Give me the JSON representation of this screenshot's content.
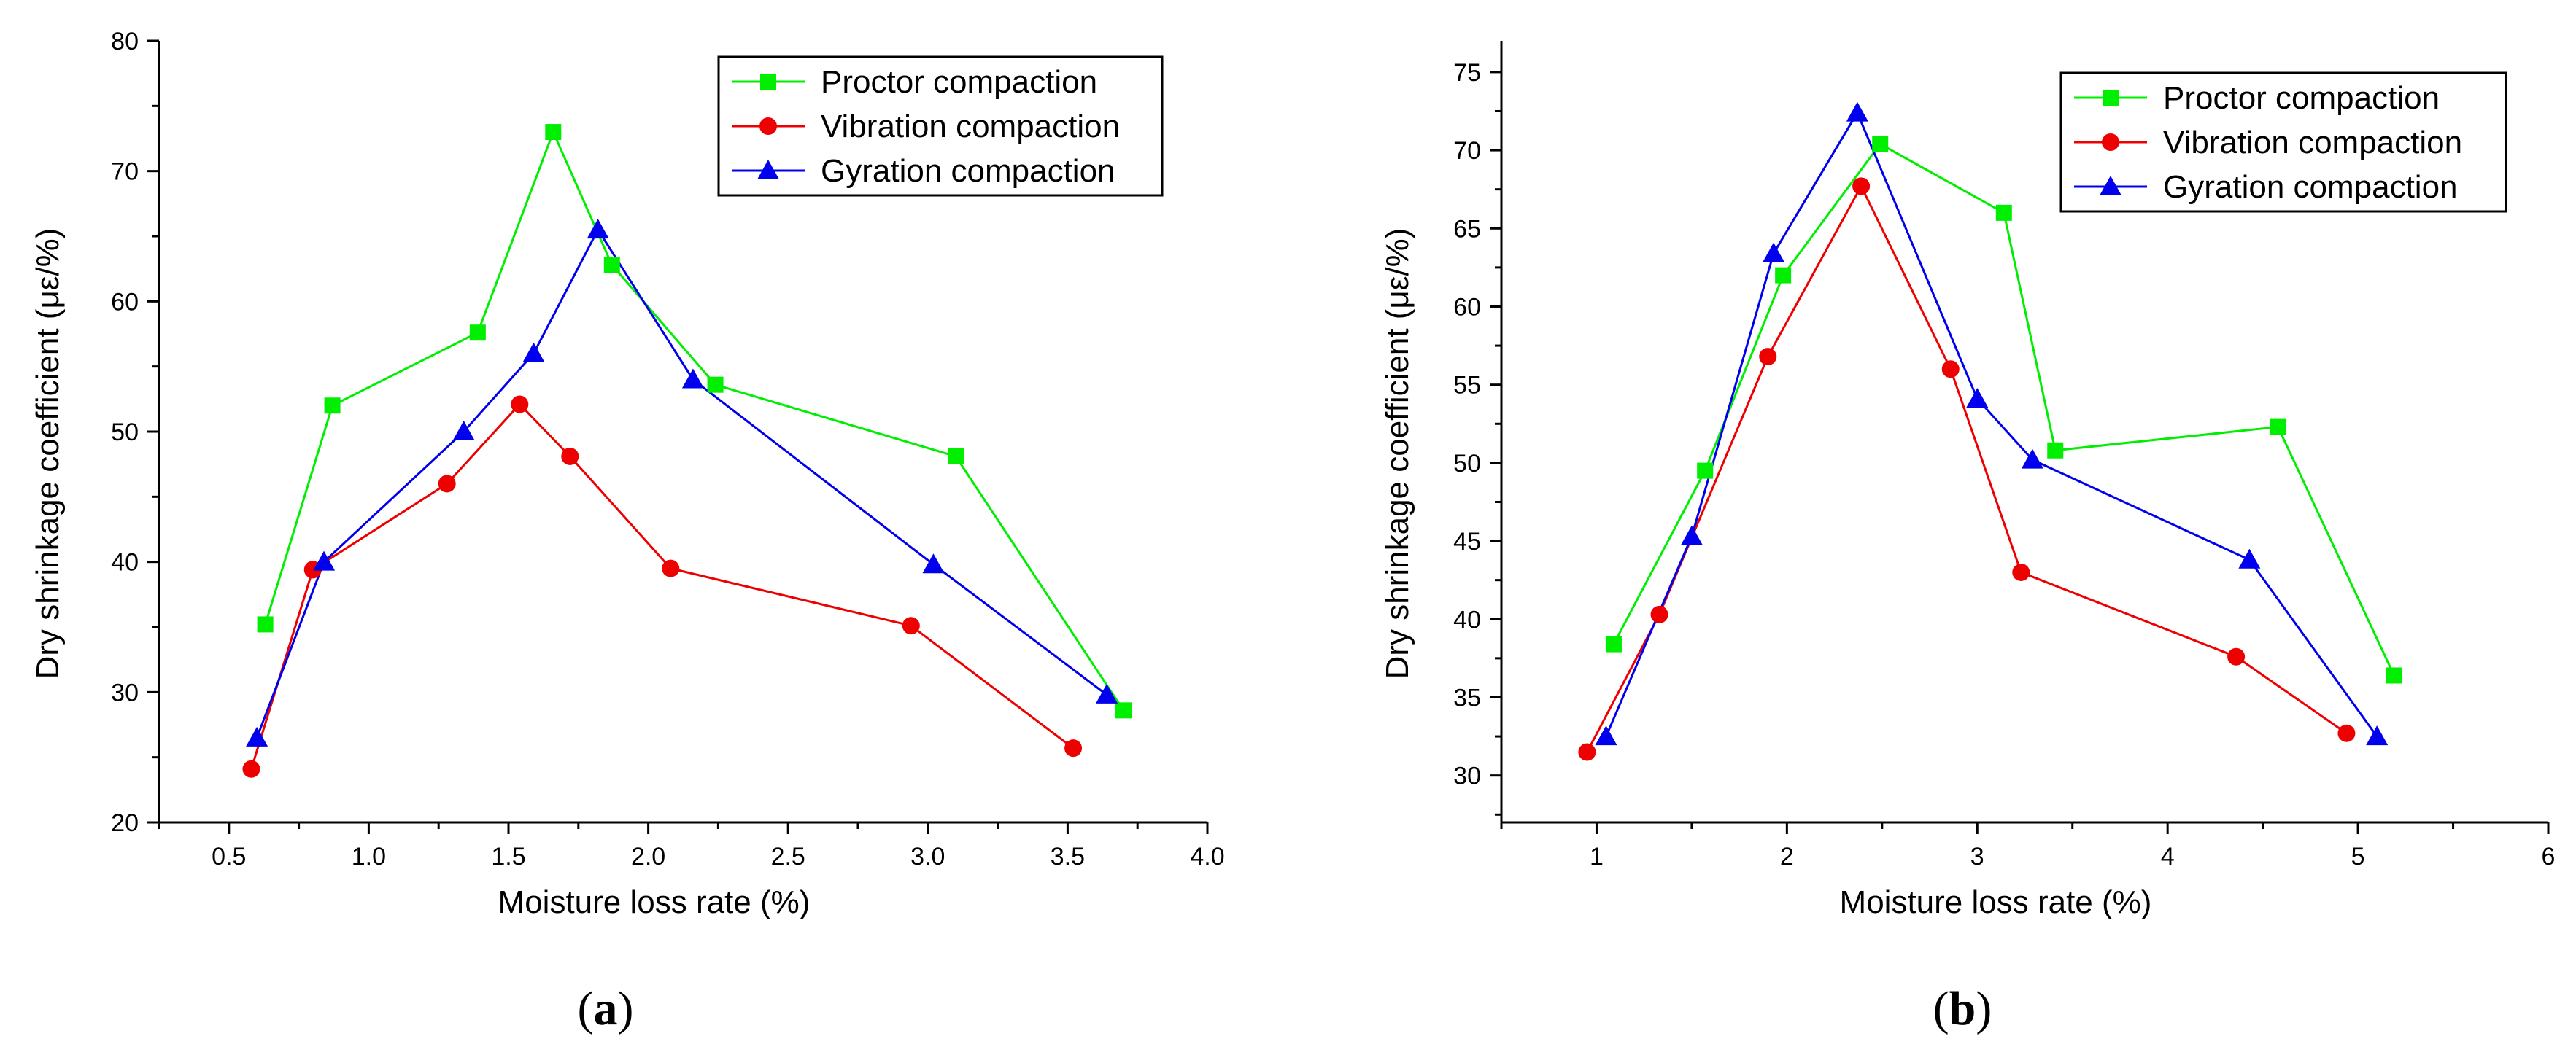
{
  "chart_data": [
    {
      "type": "line",
      "panel_label": "a",
      "xlabel": "Moisture loss rate (%)",
      "ylabel": "Dry shrinkage coefficient (με/%)",
      "xlim": [
        0.25,
        4.0
      ],
      "ylim": [
        20,
        80
      ],
      "xticks": [
        0.5,
        1.0,
        1.5,
        2.0,
        2.5,
        3.0,
        3.5,
        4.0
      ],
      "xtick_labels": [
        "0.5",
        "1.0",
        "1.5",
        "2.0",
        "2.5",
        "3.0",
        "3.5",
        "4.0"
      ],
      "yticks": [
        20,
        30,
        40,
        50,
        60,
        70,
        80
      ],
      "ytick_labels": [
        "20",
        "30",
        "40",
        "50",
        "60",
        "70",
        "80"
      ],
      "legend_position": "top-right",
      "series": [
        {
          "name": "Proctor compaction",
          "color": "#00ee00",
          "marker": "square",
          "x": [
            0.63,
            0.87,
            1.39,
            1.66,
            1.87,
            2.24,
            3.1,
            3.7
          ],
          "y": [
            35.2,
            52.0,
            57.6,
            73.0,
            62.8,
            53.6,
            48.1,
            28.6
          ]
        },
        {
          "name": "Vibration compaction",
          "color": "#ee0000",
          "marker": "circle",
          "x": [
            0.58,
            0.8,
            1.28,
            1.54,
            1.72,
            2.08,
            2.94,
            3.52
          ],
          "y": [
            24.1,
            39.4,
            46.0,
            52.1,
            48.1,
            39.5,
            35.1,
            25.7
          ]
        },
        {
          "name": "Gyration compaction",
          "color": "#0000ee",
          "marker": "triangle",
          "x": [
            0.6,
            0.84,
            1.34,
            1.59,
            1.82,
            2.16,
            3.02,
            3.64
          ],
          "y": [
            26.5,
            40.0,
            50.0,
            56.0,
            65.5,
            54.0,
            39.8,
            29.8
          ]
        }
      ]
    },
    {
      "type": "line",
      "panel_label": "b",
      "xlabel": "Moisture loss rate (%)",
      "ylabel": "Dry shrinkage coefficient (με/%)",
      "xlim": [
        0.5,
        6.0
      ],
      "ylim": [
        27,
        77
      ],
      "xticks": [
        1,
        2,
        3,
        4,
        5,
        6
      ],
      "xtick_labels": [
        "1",
        "2",
        "3",
        "4",
        "5",
        "6"
      ],
      "yticks": [
        30,
        35,
        40,
        45,
        50,
        55,
        60,
        65,
        70,
        75
      ],
      "ytick_labels": [
        "30",
        "35",
        "40",
        "45",
        "50",
        "55",
        "60",
        "65",
        "70",
        "75"
      ],
      "legend_position": "top-right",
      "series": [
        {
          "name": "Proctor compaction",
          "color": "#00ee00",
          "marker": "square",
          "x": [
            1.09,
            1.57,
            1.98,
            2.49,
            3.14,
            3.41,
            4.58,
            5.19
          ],
          "y": [
            38.4,
            49.5,
            62.0,
            70.4,
            66.0,
            50.8,
            52.3,
            36.4
          ]
        },
        {
          "name": "Vibration compaction",
          "color": "#ee0000",
          "marker": "circle",
          "x": [
            0.95,
            1.33,
            1.9,
            2.39,
            2.86,
            3.23,
            4.36,
            4.94
          ],
          "y": [
            31.5,
            40.3,
            56.8,
            67.7,
            56.0,
            43.0,
            37.6,
            32.7
          ]
        },
        {
          "name": "Gyration compaction",
          "color": "#0000ee",
          "marker": "triangle",
          "x": [
            1.05,
            1.5,
            1.93,
            2.37,
            3.0,
            3.29,
            4.43,
            5.1
          ],
          "y": [
            32.5,
            45.3,
            63.4,
            72.4,
            54.1,
            50.2,
            43.8,
            32.5
          ]
        }
      ]
    }
  ]
}
